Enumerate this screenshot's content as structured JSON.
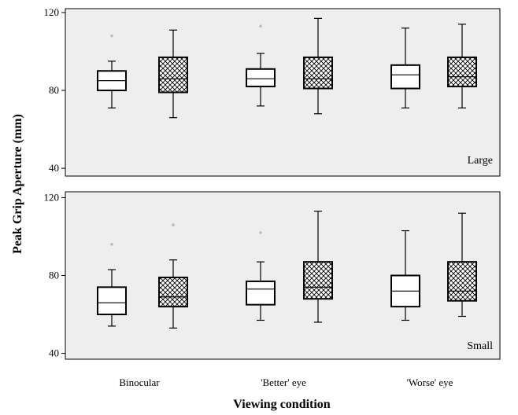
{
  "chart_data": {
    "type": "boxplot",
    "xlabel": "Viewing condition",
    "ylabel": "Peak Grip Aperture (mm)",
    "categories": [
      "Binocular",
      "'Better' eye",
      "'Worse' eye"
    ],
    "box_styles": [
      "plain",
      "crosshatch"
    ],
    "panels": [
      {
        "label": "Large",
        "ylim": [
          36,
          122
        ],
        "yticks": [
          40,
          80,
          120
        ],
        "boxes": [
          {
            "category": "Binocular",
            "style": "plain",
            "min": 71,
            "q1": 80,
            "median": 85,
            "q3": 90,
            "max": 95,
            "outliers": [
              108
            ]
          },
          {
            "category": "Binocular",
            "style": "crosshatch",
            "min": 66,
            "q1": 79,
            "median": 86,
            "q3": 97,
            "max": 111,
            "outliers": []
          },
          {
            "category": "'Better' eye",
            "style": "plain",
            "min": 72,
            "q1": 82,
            "median": 86,
            "q3": 91,
            "max": 99,
            "outliers": [
              113
            ]
          },
          {
            "category": "'Better' eye",
            "style": "crosshatch",
            "min": 68,
            "q1": 81,
            "median": 86,
            "q3": 97,
            "max": 117,
            "outliers": []
          },
          {
            "category": "'Worse' eye",
            "style": "plain",
            "min": 71,
            "q1": 81,
            "median": 88,
            "q3": 93,
            "max": 112,
            "outliers": []
          },
          {
            "category": "'Worse' eye",
            "style": "crosshatch",
            "min": 71,
            "q1": 82,
            "median": 87,
            "q3": 97,
            "max": 114,
            "outliers": []
          }
        ]
      },
      {
        "label": "Small",
        "ylim": [
          37,
          123
        ],
        "yticks": [
          40,
          80,
          120
        ],
        "boxes": [
          {
            "category": "Binocular",
            "style": "plain",
            "min": 54,
            "q1": 60,
            "median": 66,
            "q3": 74,
            "max": 83,
            "outliers": [
              96
            ]
          },
          {
            "category": "Binocular",
            "style": "crosshatch",
            "min": 53,
            "q1": 64,
            "median": 69,
            "q3": 79,
            "max": 88,
            "outliers": [
              106
            ]
          },
          {
            "category": "'Better' eye",
            "style": "plain",
            "min": 57,
            "q1": 65,
            "median": 73,
            "q3": 77,
            "max": 87,
            "outliers": [
              102
            ]
          },
          {
            "category": "'Better' eye",
            "style": "crosshatch",
            "min": 56,
            "q1": 68,
            "median": 74,
            "q3": 87,
            "max": 113,
            "outliers": []
          },
          {
            "category": "'Worse' eye",
            "style": "plain",
            "min": 57,
            "q1": 64,
            "median": 72,
            "q3": 80,
            "max": 103,
            "outliers": []
          },
          {
            "category": "'Worse' eye",
            "style": "crosshatch",
            "min": 59,
            "q1": 67,
            "median": 72,
            "q3": 87,
            "max": 112,
            "outliers": []
          }
        ]
      }
    ],
    "grid": false
  }
}
